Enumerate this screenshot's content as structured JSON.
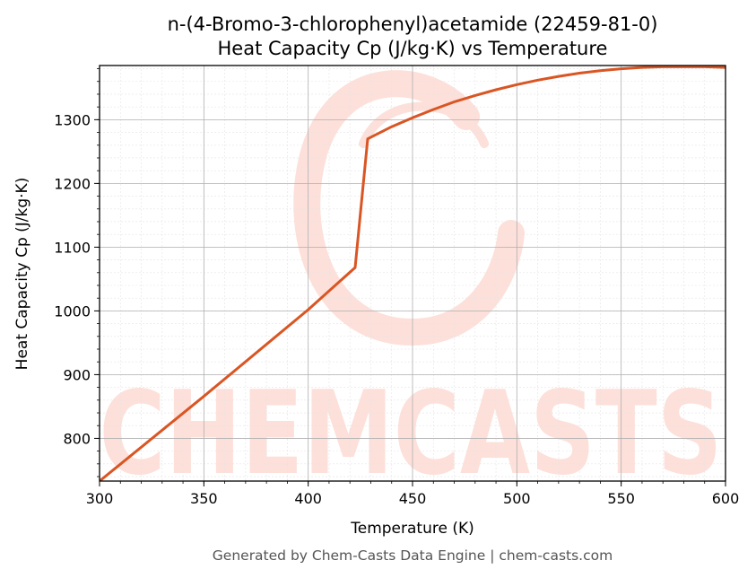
{
  "chart_data": {
    "type": "line",
    "title": "n-(4-Bromo-3-chlorophenyl)acetamide (22459-81-0)",
    "subtitle": "Heat Capacity Cp (J/kg·K) vs Temperature",
    "xlabel": "Temperature (K)",
    "ylabel": "Heat Capacity Cp (J/kg·K)",
    "xlim": [
      300,
      600
    ],
    "ylim": [
      733,
      1385
    ],
    "x_ticks": [
      300,
      350,
      400,
      450,
      500,
      550,
      600
    ],
    "y_ticks": [
      800,
      900,
      1000,
      1100,
      1200,
      1300
    ],
    "grid": true,
    "legend": "none",
    "series": [
      {
        "color": "#d95624",
        "x": [
          300,
          350,
          400,
          422.5,
          428.5,
          440,
          450,
          460,
          470,
          480,
          490,
          500,
          510,
          520,
          530,
          540,
          550,
          560,
          570,
          580,
          590,
          600
        ],
        "y": [
          733,
          866,
          1002,
          1068,
          1270,
          1289,
          1303,
          1316,
          1328,
          1338,
          1347,
          1355,
          1362,
          1368,
          1373,
          1377,
          1380,
          1382,
          1383,
          1383,
          1383,
          1382
        ]
      }
    ]
  },
  "footer": "Generated by Chem-Casts Data Engine | chem-casts.com",
  "watermark": "CHEMCASTS",
  "colors": {
    "line": "#d95624",
    "watermark": "#fde0da",
    "grid_major": "#b0b0b0",
    "grid_minor": "#e4e4e4"
  }
}
